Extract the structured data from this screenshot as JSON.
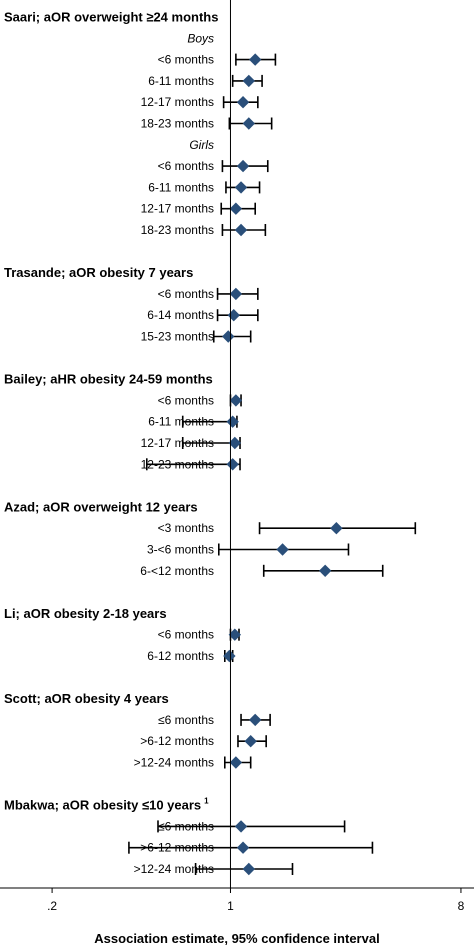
{
  "chart_data": {
    "type": "forest",
    "xlabel": "Association estimate, 95% confidence interval",
    "x_scale": "log",
    "xlim": [
      0.125,
      9
    ],
    "ticks": [
      {
        "value": 0.2,
        "label": ".2"
      },
      {
        "value": 1,
        "label": "1"
      },
      {
        "value": 8,
        "label": "8"
      }
    ],
    "reference_line": 1,
    "colors": {
      "marker": "#2a4f7a",
      "line": "#000000"
    },
    "rows": [
      {
        "kind": "header",
        "label": "Saari; aOR overweight ≥24 months"
      },
      {
        "kind": "subheader",
        "label": "Boys"
      },
      {
        "kind": "row",
        "label": "<6 months",
        "est": 1.25,
        "lo": 1.05,
        "hi": 1.5
      },
      {
        "kind": "row",
        "label": "6-11 months",
        "est": 1.18,
        "lo": 1.02,
        "hi": 1.33
      },
      {
        "kind": "row",
        "label": "12-17 months",
        "est": 1.12,
        "lo": 0.94,
        "hi": 1.28
      },
      {
        "kind": "row",
        "label": "18-23 months",
        "est": 1.18,
        "lo": 0.99,
        "hi": 1.45
      },
      {
        "kind": "subheader",
        "label": "Girls"
      },
      {
        "kind": "row",
        "label": "<6 months",
        "est": 1.12,
        "lo": 0.93,
        "hi": 1.4
      },
      {
        "kind": "row",
        "label": "6-11 months",
        "est": 1.1,
        "lo": 0.96,
        "hi": 1.3
      },
      {
        "kind": "row",
        "label": "12-17 months",
        "est": 1.05,
        "lo": 0.92,
        "hi": 1.25
      },
      {
        "kind": "row",
        "label": "18-23 months",
        "est": 1.1,
        "lo": 0.93,
        "hi": 1.37
      },
      {
        "kind": "gap"
      },
      {
        "kind": "header",
        "label": "Trasande; aOR obesity 7 years"
      },
      {
        "kind": "row",
        "label": "<6 months",
        "est": 1.05,
        "lo": 0.89,
        "hi": 1.28
      },
      {
        "kind": "row",
        "label": "6-14 months",
        "est": 1.03,
        "lo": 0.89,
        "hi": 1.28
      },
      {
        "kind": "row",
        "label": "15-23 months",
        "est": 0.98,
        "lo": 0.86,
        "hi": 1.2
      },
      {
        "kind": "gap"
      },
      {
        "kind": "header",
        "label": "Bailey; aHR obesity 24-59 months"
      },
      {
        "kind": "row",
        "label": "<6 months",
        "est": 1.05,
        "lo": 1.0,
        "hi": 1.1
      },
      {
        "kind": "row",
        "label": "6-11 months",
        "est": 1.02,
        "lo": 0.65,
        "hi": 1.06
      },
      {
        "kind": "row",
        "label": "12-17 months",
        "est": 1.04,
        "lo": 0.65,
        "hi": 1.09
      },
      {
        "kind": "row",
        "label": "12-23 months",
        "est": 1.02,
        "lo": 0.47,
        "hi": 1.09
      },
      {
        "kind": "gap"
      },
      {
        "kind": "header",
        "label": "Azad; aOR overweight 12 years"
      },
      {
        "kind": "row",
        "label": "<3 months",
        "est": 2.6,
        "lo": 1.3,
        "hi": 5.3
      },
      {
        "kind": "row",
        "label": "3-<6 months",
        "est": 1.6,
        "lo": 0.9,
        "hi": 2.9
      },
      {
        "kind": "row",
        "label": "6-<12 months",
        "est": 2.35,
        "lo": 1.35,
        "hi": 3.95
      },
      {
        "kind": "gap"
      },
      {
        "kind": "header",
        "label": "Li; aOR obesity 2-18 years"
      },
      {
        "kind": "row",
        "label": "<6 months",
        "est": 1.04,
        "lo": 1.0,
        "hi": 1.08
      },
      {
        "kind": "row",
        "label": "6-12 months",
        "est": 0.99,
        "lo": 0.95,
        "hi": 1.02
      },
      {
        "kind": "gap"
      },
      {
        "kind": "header",
        "label": "Scott; aOR obesity 4 years"
      },
      {
        "kind": "row",
        "label": "≤6 months",
        "est": 1.25,
        "lo": 1.1,
        "hi": 1.43
      },
      {
        "kind": "row",
        "label": ">6-12 months",
        "est": 1.2,
        "lo": 1.07,
        "hi": 1.38
      },
      {
        "kind": "row",
        "label": ">12-24 months",
        "est": 1.05,
        "lo": 0.95,
        "hi": 1.2
      },
      {
        "kind": "gap"
      },
      {
        "kind": "header",
        "label": "Mbakwa; aOR obesity ≤10 years",
        "superscript": "1"
      },
      {
        "kind": "row",
        "label": "≤6 months",
        "est": 1.1,
        "lo": 0.52,
        "hi": 2.8
      },
      {
        "kind": "row",
        "label": ">6-12 months",
        "est": 1.12,
        "lo": 0.4,
        "hi": 3.6
      },
      {
        "kind": "row",
        "label": ">12-24 months",
        "est": 1.18,
        "lo": 0.73,
        "hi": 1.75
      }
    ]
  }
}
